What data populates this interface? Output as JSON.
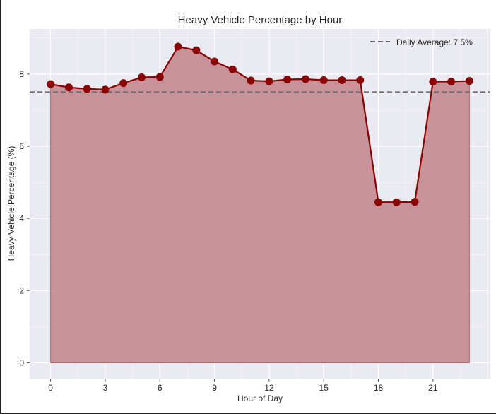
{
  "chart_data": {
    "type": "area",
    "title": "Heavy Vehicle Percentage by Hour",
    "xlabel": "Hour of Day",
    "ylabel": "Heavy Vehicle Percentage (%)",
    "x": [
      0,
      1,
      2,
      3,
      4,
      5,
      6,
      7,
      8,
      9,
      10,
      11,
      12,
      13,
      14,
      15,
      16,
      17,
      18,
      19,
      20,
      21,
      22,
      23
    ],
    "values": [
      7.72,
      7.63,
      7.59,
      7.57,
      7.75,
      7.91,
      7.92,
      8.76,
      8.66,
      8.35,
      8.13,
      7.82,
      7.8,
      7.85,
      7.86,
      7.83,
      7.83,
      7.83,
      4.45,
      4.45,
      4.46,
      7.79,
      7.79,
      7.81
    ],
    "xlim": [
      -1.15,
      24.15
    ],
    "ylim": [
      -0.44,
      9.25
    ],
    "xticks": [
      0,
      3,
      6,
      9,
      12,
      15,
      18,
      21
    ],
    "yticks": [
      0,
      2,
      4,
      6,
      8
    ],
    "daily_average": 7.5,
    "legend": {
      "placement": "top-right",
      "entries": [
        "Daily Average: 7.5%"
      ]
    },
    "grid": true,
    "colors": {
      "line": "#8b0000",
      "fill": "#c1838a",
      "average_line": "#6e6e6e",
      "plot_bg": "#eaeaf2",
      "grid": "#ffffff"
    }
  }
}
